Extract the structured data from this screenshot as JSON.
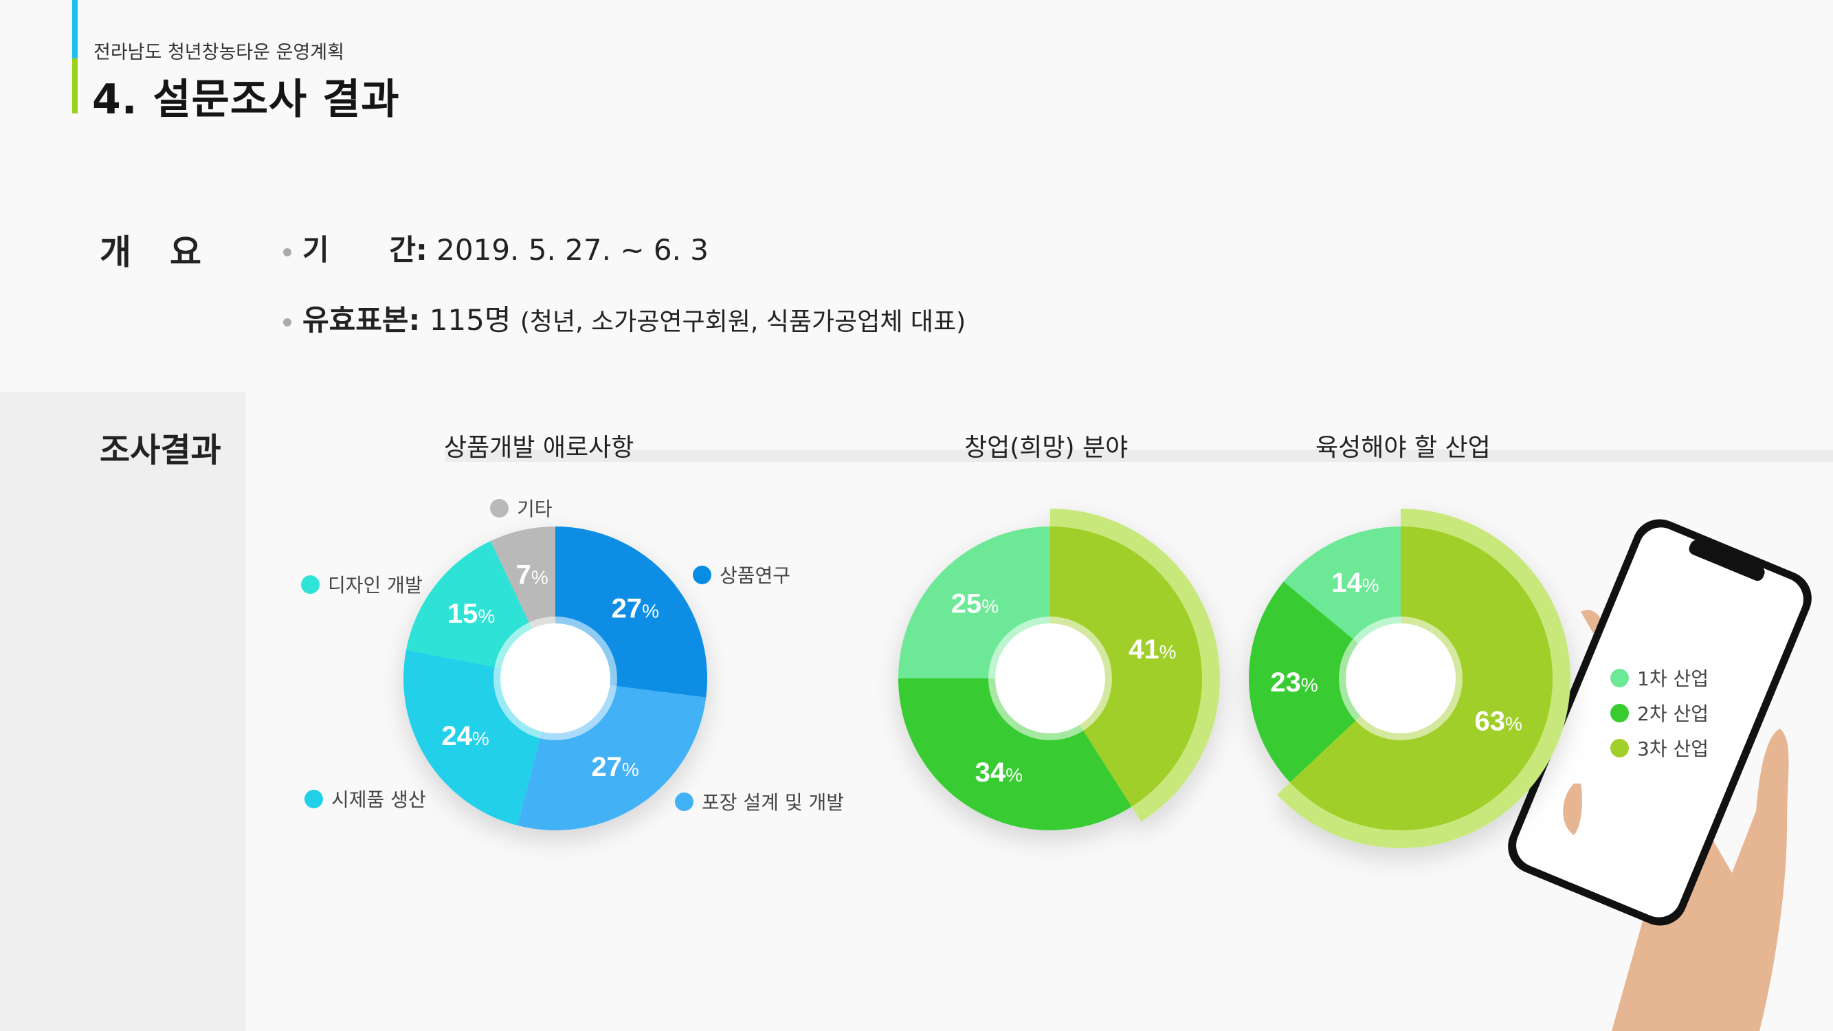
{
  "header": {
    "subtitle": "전라남도 청년창농타운 운영계획",
    "title": "4. 설문조사 결과"
  },
  "overview": {
    "label": "개요",
    "period_label": "기      간:",
    "period_value": " 2019. 5. 27. ~ 6. 3",
    "sample_label": "유효표본:",
    "sample_value": " 115명 ",
    "sample_note": "(청년, 소가공연구회원, 식품가공업체 대표)"
  },
  "results": {
    "label": "조사결과"
  },
  "colors": {
    "accent_blue": "#1ec0ee",
    "accent_green": "#9bd11c"
  },
  "chart_data": [
    {
      "type": "pie",
      "title": "상품개발 애로사항",
      "unit": "%",
      "categories": [
        "상품연구",
        "포장 설계 및 개발",
        "시제품 생산",
        "디자인 개발",
        "기타"
      ],
      "values": [
        27,
        27,
        24,
        15,
        7
      ],
      "colors": [
        "#078ee4",
        "#42b1f6",
        "#22d0ea",
        "#2fe3d6",
        "#b9b9b9"
      ]
    },
    {
      "type": "pie",
      "title": "창업(희망) 분야",
      "unit": "%",
      "categories": [
        "3차 산업",
        "2차 산업",
        "1차 산업"
      ],
      "values": [
        41,
        34,
        25
      ],
      "colors": [
        "#a1cf2b",
        "#38cc30",
        "#6ce896"
      ],
      "highlight": "3차 산업"
    },
    {
      "type": "pie",
      "title": "육성해야 할 산업",
      "unit": "%",
      "categories": [
        "3차 산업",
        "2차 산업",
        "1차 산업"
      ],
      "values": [
        63,
        23,
        14
      ],
      "colors": [
        "#a1cf2b",
        "#38cc30",
        "#6ce896"
      ],
      "highlight": "3차 산업"
    }
  ],
  "legend_industry": [
    {
      "label": "1차 산업",
      "color": "#6ce896"
    },
    {
      "label": "2차 산업",
      "color": "#38cc30"
    },
    {
      "label": "3차 산업",
      "color": "#a1cf2b"
    }
  ]
}
